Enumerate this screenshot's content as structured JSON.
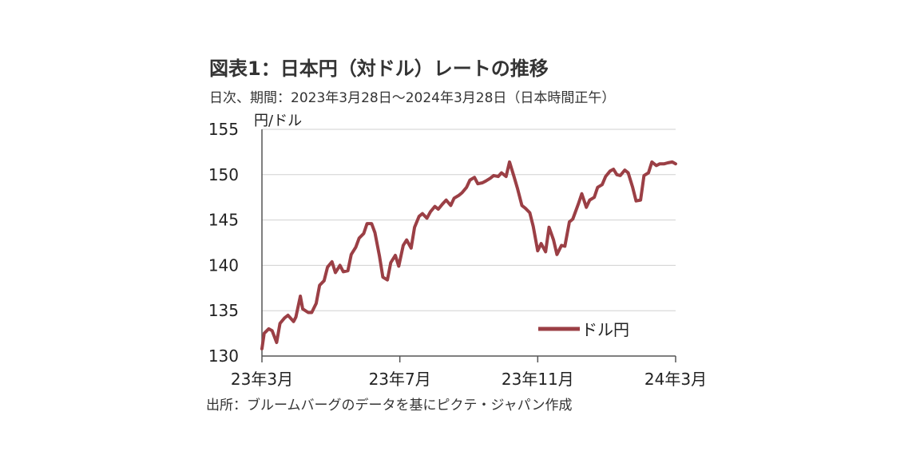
{
  "chart_data": {
    "type": "line",
    "title": "図表1：日本円（対ドル）レートの推移",
    "subtitle": "日次、期間：2023年3月28日～2024年3月28日（日本時間正午）",
    "ylabel": "円/ドル",
    "xlabel": "",
    "source": "出所：ブルームバーグのデータを基にピクテ・ジャパン作成",
    "ylim": [
      130,
      155
    ],
    "yticks": [
      "155",
      "150",
      "145",
      "140",
      "135",
      "130"
    ],
    "xticks": [
      "23年3月",
      "23年7月",
      "23年11月",
      "24年3月"
    ],
    "xlim": [
      "2023-03-28",
      "2024-03-28"
    ],
    "grid": true,
    "legend_position": "bottom-right",
    "colors": {
      "series": "#9b3f45",
      "grid": "#d0d0d0",
      "axis": "#555555"
    },
    "series": [
      {
        "name": "ドル円",
        "x": [
          "2023-03-28",
          "2023-03-30",
          "2023-04-03",
          "2023-04-06",
          "2023-04-10",
          "2023-04-13",
          "2023-04-17",
          "2023-04-20",
          "2023-04-25",
          "2023-04-27",
          "2023-05-01",
          "2023-05-03",
          "2023-05-08",
          "2023-05-11",
          "2023-05-15",
          "2023-05-18",
          "2023-05-22",
          "2023-05-25",
          "2023-05-29",
          "2023-06-01",
          "2023-06-05",
          "2023-06-08",
          "2023-06-12",
          "2023-06-15",
          "2023-06-19",
          "2023-06-22",
          "2023-06-26",
          "2023-06-29",
          "2023-07-03",
          "2023-07-06",
          "2023-07-10",
          "2023-07-13",
          "2023-07-17",
          "2023-07-20",
          "2023-07-24",
          "2023-07-27",
          "2023-07-31",
          "2023-08-03",
          "2023-08-07",
          "2023-08-10",
          "2023-08-14",
          "2023-08-17",
          "2023-08-21",
          "2023-08-24",
          "2023-08-28",
          "2023-08-31",
          "2023-09-04",
          "2023-09-07",
          "2023-09-11",
          "2023-09-14",
          "2023-09-18",
          "2023-09-21",
          "2023-09-25",
          "2023-09-28",
          "2023-10-02",
          "2023-10-05",
          "2023-10-09",
          "2023-10-12",
          "2023-10-16",
          "2023-10-19",
          "2023-10-23",
          "2023-10-26",
          "2023-10-30",
          "2023-11-02",
          "2023-11-06",
          "2023-11-09",
          "2023-11-13",
          "2023-11-16",
          "2023-11-20",
          "2023-11-23",
          "2023-11-27",
          "2023-11-30",
          "2023-12-04",
          "2023-12-07",
          "2023-12-11",
          "2023-12-14",
          "2023-12-18",
          "2023-12-21",
          "2023-12-25",
          "2023-12-28",
          "2024-01-02",
          "2024-01-05",
          "2024-01-09",
          "2024-01-12",
          "2024-01-16",
          "2024-01-19",
          "2024-01-23",
          "2024-01-26",
          "2024-01-30",
          "2024-02-02",
          "2024-02-05",
          "2024-02-08",
          "2024-02-12",
          "2024-02-15",
          "2024-02-19",
          "2024-02-22",
          "2024-02-26",
          "2024-02-29",
          "2024-03-04",
          "2024-03-07",
          "2024-03-11",
          "2024-03-14",
          "2024-03-18",
          "2024-03-21",
          "2024-03-25",
          "2024-03-28"
        ],
        "values": [
          130.8,
          132.5,
          133.0,
          132.8,
          131.5,
          133.6,
          134.2,
          134.5,
          133.8,
          134.3,
          136.6,
          135.2,
          134.8,
          134.8,
          135.8,
          137.8,
          138.3,
          139.8,
          140.4,
          139.2,
          140.0,
          139.3,
          139.4,
          141.2,
          142.0,
          143.0,
          143.5,
          144.6,
          144.6,
          143.6,
          141.0,
          138.7,
          138.4,
          140.3,
          141.1,
          139.9,
          142.2,
          142.8,
          141.9,
          144.2,
          145.4,
          145.7,
          145.2,
          145.9,
          146.5,
          146.2,
          146.8,
          147.2,
          146.6,
          147.4,
          147.7,
          148.0,
          148.6,
          149.4,
          149.7,
          149.0,
          149.1,
          149.3,
          149.6,
          149.9,
          149.8,
          150.2,
          149.8,
          151.4,
          149.8,
          148.5,
          146.6,
          146.3,
          145.8,
          144.3,
          141.6,
          142.4,
          141.5,
          144.2,
          142.8,
          141.2,
          142.2,
          142.1,
          144.8,
          145.1,
          146.8,
          147.9,
          146.4,
          147.2,
          147.5,
          148.6,
          148.9,
          149.8,
          150.4,
          150.6,
          150.0,
          149.9,
          150.5,
          150.2,
          148.6,
          147.1,
          147.2,
          149.9,
          150.2,
          151.4,
          151.0,
          151.2,
          151.2,
          151.3,
          151.4,
          151.2
        ]
      }
    ]
  }
}
